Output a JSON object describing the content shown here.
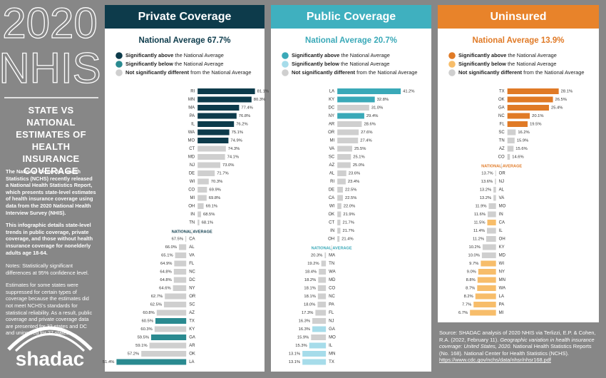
{
  "sidebar": {
    "year": "2020",
    "survey": "NHIS",
    "heading": "STATE VS NATIONAL ESTIMATES OF HEALTH INSURANCE COVERAGE",
    "paragraphs": [
      "The National Center for Health Statistics (NCHS) recently released a National Health Statistics Report, which presents state-level estimates of health insurance coverage using data from the 2020 National Health Interview Survey (NHIS).",
      "This infographic details state-level trends in public coverage, private coverage, and those without health insurance coverage for nonelderly adults age 18-64."
    ],
    "notes": [
      "Notes: Statistically significant differences at 95% confidence level.",
      "Estimates for some states were suppressed for certain types of coverage because the estimates did not meet NCHS's standards for statistical reliability. As a result, public coverage and private coverage data are presented for 32 states and DC and uninsured for 27 states."
    ],
    "logo": "shadac"
  },
  "chart_data": [
    {
      "type": "bar",
      "title": "Private Coverage",
      "header_color": "#0d3b4b",
      "average": 67.7,
      "average_label": "National Average 67.7%",
      "average_marker": "NATIONAL AVERAGE",
      "average_color": "#0d3b4b",
      "legend": [
        {
          "color": "#0d3b4b",
          "bold": "Significantly above",
          "text": "the National Average"
        },
        {
          "color": "#2a8a90",
          "bold": "Significantly below",
          "text": "the National Average"
        },
        {
          "color": "#cfcfcf",
          "bold": "Not significantly different",
          "text": "from the National Average"
        }
      ],
      "xlim": [
        48,
        84
      ],
      "categories": [
        "RI",
        "MN",
        "MA",
        "PA",
        "IL",
        "WA",
        "MO",
        "CT",
        "MD",
        "NJ",
        "DE",
        "WI",
        "CO",
        "MI",
        "OH",
        "IN",
        "TN",
        "CA",
        "AL",
        "VA",
        "FL",
        "NC",
        "DC",
        "NY",
        "OR",
        "SC",
        "AZ",
        "TX",
        "KY",
        "GA",
        "AR",
        "OK",
        "LA"
      ],
      "values": [
        81.1,
        80.3,
        77.4,
        76.8,
        76.2,
        75.1,
        74.9,
        74.3,
        74.1,
        73.0,
        71.7,
        70.3,
        69.9,
        69.8,
        69.1,
        68.5,
        68.1,
        67.5,
        66.0,
        65.1,
        64.9,
        64.8,
        64.8,
        64.6,
        62.7,
        62.5,
        60.8,
        60.5,
        60.3,
        59.5,
        59.1,
        57.2,
        51.4
      ],
      "value_labels": [
        "81.1%",
        "80.3%",
        "77.4%",
        "76.8%",
        "76.2%",
        "75.1%",
        "74.9%",
        "74.3%",
        "74.1%",
        "73.0%",
        "71.7%",
        "70.3%",
        "69.9%",
        "69.8%",
        "69.1%",
        "68.5%",
        "68.1%",
        "67.5%",
        "66.0%",
        "65.1%",
        "64.9%",
        "64.8%",
        "64.8%",
        "64.6%",
        "62.7%",
        "62.5%",
        "60.8%",
        "60.5%",
        "60.3%",
        "59.5%",
        "59.1%",
        "57.2%",
        "51.4%"
      ],
      "colors": [
        "#0d3b4b",
        "#0d3b4b",
        "#0d3b4b",
        "#0d3b4b",
        "#0d3b4b",
        "#0d3b4b",
        "#0d3b4b",
        "#cfcfcf",
        "#cfcfcf",
        "#cfcfcf",
        "#cfcfcf",
        "#cfcfcf",
        "#cfcfcf",
        "#cfcfcf",
        "#cfcfcf",
        "#cfcfcf",
        "#cfcfcf",
        "#cfcfcf",
        "#cfcfcf",
        "#cfcfcf",
        "#cfcfcf",
        "#cfcfcf",
        "#cfcfcf",
        "#cfcfcf",
        "#cfcfcf",
        "#cfcfcf",
        "#cfcfcf",
        "#2a8a90",
        "#cfcfcf",
        "#2a8a90",
        "#cfcfcf",
        "#cfcfcf",
        "#2a8a90"
      ]
    },
    {
      "type": "bar",
      "title": "Public Coverage",
      "header_color": "#3fb0bf",
      "average": 20.7,
      "average_label": "National Average 20.7%",
      "average_marker": "NATIONAL AVERAGE",
      "average_color": "#3aa9b8",
      "legend": [
        {
          "color": "#3aa9b8",
          "bold": "Significantly above",
          "text": "the National Average"
        },
        {
          "color": "#a6dcea",
          "bold": "Significantly below",
          "text": "the National Average"
        },
        {
          "color": "#cfcfcf",
          "bold": "Not significantly different",
          "text": "from the National Average"
        }
      ],
      "xlim": [
        2,
        52
      ],
      "categories": [
        "LA",
        "KY",
        "DC",
        "NY",
        "AR",
        "OR",
        "MI",
        "VA",
        "SC",
        "AZ",
        "AL",
        "RI",
        "DE",
        "CA",
        "WI",
        "OK",
        "CT",
        "IN",
        "OH",
        "MA",
        "TN",
        "WA",
        "MD",
        "CO",
        "NC",
        "PA",
        "FL",
        "NJ",
        "GA",
        "MO",
        "IL",
        "MN",
        "TX"
      ],
      "values": [
        41.2,
        32.8,
        31.0,
        29.4,
        28.6,
        27.6,
        27.4,
        25.5,
        25.1,
        25.0,
        23.6,
        23.4,
        22.5,
        22.5,
        22.0,
        21.9,
        21.7,
        21.7,
        21.4,
        20.3,
        19.2,
        18.4,
        18.2,
        18.1,
        18.1,
        18.0,
        17.3,
        16.3,
        16.3,
        15.9,
        15.3,
        13.1,
        13.1
      ],
      "value_labels": [
        "41.2%",
        "32.8%",
        "31.0%",
        "29.4%",
        "28.6%",
        "27.6%",
        "27.4%",
        "25.5%",
        "25.1%",
        "25.0%",
        "23.6%",
        "23.4%",
        "22.5%",
        "22.5%",
        "22.0%",
        "21.9%",
        "21.7%",
        "21.7%",
        "21.4%",
        "20.3%",
        "19.2%",
        "18.4%",
        "18.2%",
        "18.1%",
        "18.1%",
        "18.0%",
        "17.3%",
        "16.3%",
        "16.3%",
        "15.9%",
        "15.3%",
        "13.1%",
        "13.1%"
      ],
      "colors": [
        "#3aa9b8",
        "#3aa9b8",
        "#cfcfcf",
        "#3aa9b8",
        "#cfcfcf",
        "#cfcfcf",
        "#cfcfcf",
        "#cfcfcf",
        "#cfcfcf",
        "#cfcfcf",
        "#cfcfcf",
        "#cfcfcf",
        "#cfcfcf",
        "#cfcfcf",
        "#cfcfcf",
        "#cfcfcf",
        "#cfcfcf",
        "#cfcfcf",
        "#cfcfcf",
        "#cfcfcf",
        "#cfcfcf",
        "#cfcfcf",
        "#cfcfcf",
        "#cfcfcf",
        "#cfcfcf",
        "#cfcfcf",
        "#cfcfcf",
        "#cfcfcf",
        "#a6dcea",
        "#cfcfcf",
        "#a6dcea",
        "#a6dcea",
        "#a6dcea"
      ]
    },
    {
      "type": "bar",
      "title": "Uninsured",
      "header_color": "#e8832a",
      "average": 13.9,
      "average_label": "National Average 13.9%",
      "average_marker": "NATIONAL AVERAGE",
      "average_color": "#e07a26",
      "legend": [
        {
          "color": "#e07a26",
          "bold": "Significantly above",
          "text": "the National Average"
        },
        {
          "color": "#f7bd6a",
          "bold": "Significantly below",
          "text": "the National Average"
        },
        {
          "color": "#cfcfcf",
          "bold": "Not significantly different",
          "text": "from the National Average"
        }
      ],
      "xlim": [
        -3,
        40
      ],
      "categories": [
        "TX",
        "OK",
        "GA",
        "NC",
        "FL",
        "SC",
        "TN",
        "AZ",
        "CO",
        "OR",
        "NJ",
        "AL",
        "VA",
        "MO",
        "IN",
        "CA",
        "IL",
        "OH",
        "KY",
        "MD",
        "WI",
        "NY",
        "MN",
        "WA",
        "LA",
        "PA",
        "MI"
      ],
      "values": [
        28.1,
        26.5,
        25.4,
        20.1,
        19.5,
        16.2,
        15.9,
        15.6,
        14.6,
        13.7,
        13.6,
        13.2,
        13.2,
        11.9,
        11.6,
        11.5,
        11.4,
        11.2,
        10.2,
        10.0,
        9.7,
        9.0,
        8.8,
        8.7,
        8.2,
        7.7,
        6.7
      ],
      "value_labels": [
        "28.1%",
        "26.5%",
        "25.4%",
        "20.1%",
        "19.5%",
        "16.2%",
        "15.9%",
        "15.6%",
        "14.6%",
        "13.7%",
        "13.6%",
        "13.2%",
        "13.2%",
        "11.9%",
        "11.6%",
        "11.5%",
        "11.4%",
        "11.2%",
        "10.2%",
        "10.0%",
        "9.7%",
        "9.0%",
        "8.8%",
        "8.7%",
        "8.2%",
        "7.7%",
        "6.7%"
      ],
      "colors": [
        "#e07a26",
        "#e07a26",
        "#e07a26",
        "#e07a26",
        "#e07a26",
        "#cfcfcf",
        "#cfcfcf",
        "#cfcfcf",
        "#cfcfcf",
        "#cfcfcf",
        "#cfcfcf",
        "#cfcfcf",
        "#cfcfcf",
        "#cfcfcf",
        "#cfcfcf",
        "#f7bd6a",
        "#cfcfcf",
        "#cfcfcf",
        "#cfcfcf",
        "#cfcfcf",
        "#f7bd6a",
        "#f7bd6a",
        "#f7bd6a",
        "#f7bd6a",
        "#f7bd6a",
        "#f7bd6a",
        "#f7bd6a"
      ]
    }
  ],
  "source": {
    "before": "Source: SHADAC analysis of 2020 NHIS via Terlizzi, E.P. & Cohen, R.A. (2022, February 11). ",
    "italic": "Geographic variation in health insurance coverage: United States, 2020.",
    "after": " National Health Statistics Reports (No. 168). National Center for Health Statistics (NCHS).",
    "link": "https://www.cdc.gov/nchs/data/nhsr/nhsr168.pdf"
  }
}
